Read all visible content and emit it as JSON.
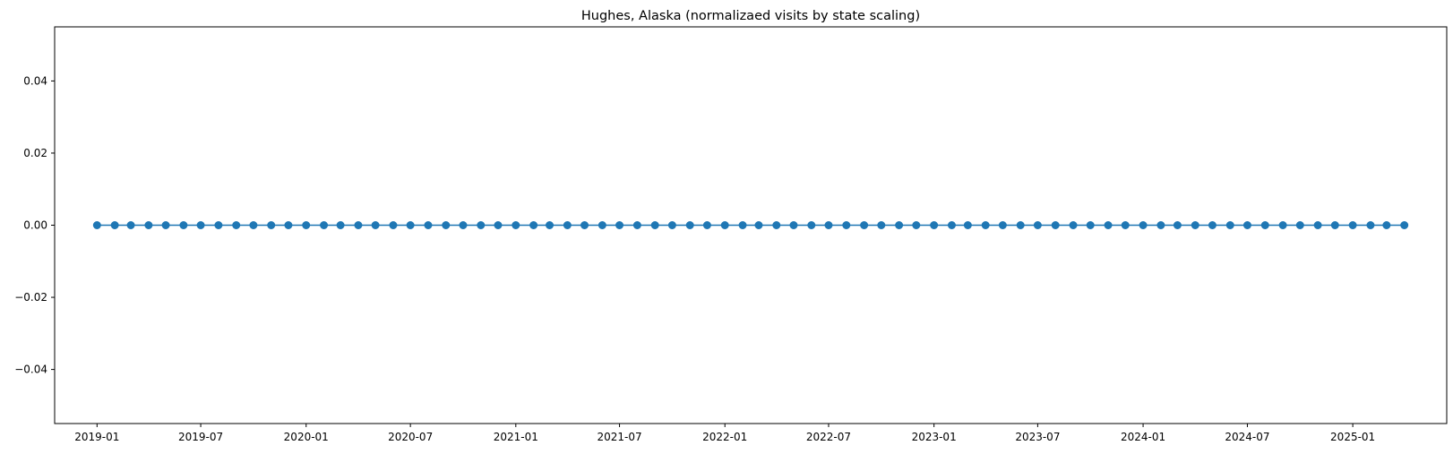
{
  "chart_data": {
    "type": "line",
    "title": "Hughes, Alaska (normalizaed visits by state scaling)",
    "xlabel": "",
    "ylabel": "",
    "x_start": "2019-01",
    "x_end": "2025-04",
    "x_frequency": "monthly",
    "x_ticks": [
      "2019-01",
      "2019-07",
      "2020-01",
      "2020-07",
      "2021-01",
      "2021-07",
      "2022-01",
      "2022-07",
      "2023-01",
      "2023-07",
      "2024-01",
      "2024-07",
      "2025-01"
    ],
    "y_ticks": [
      "0.04",
      "0.02",
      "0.00",
      "−0.02",
      "−0.04"
    ],
    "ylim": [
      -0.055,
      0.055
    ],
    "xlim": [
      "2018-10-19",
      "2025-06-14"
    ],
    "series": [
      {
        "color": "#1f77b4",
        "marker": "circle",
        "values": [
          0,
          0,
          0,
          0,
          0,
          0,
          0,
          0,
          0,
          0,
          0,
          0,
          0,
          0,
          0,
          0,
          0,
          0,
          0,
          0,
          0,
          0,
          0,
          0,
          0,
          0,
          0,
          0,
          0,
          0,
          0,
          0,
          0,
          0,
          0,
          0,
          0,
          0,
          0,
          0,
          0,
          0,
          0,
          0,
          0,
          0,
          0,
          0,
          0,
          0,
          0,
          0,
          0,
          0,
          0,
          0,
          0,
          0,
          0,
          0,
          0,
          0,
          0,
          0,
          0,
          0,
          0,
          0,
          0,
          0,
          0,
          0,
          0,
          0,
          0,
          0
        ]
      }
    ],
    "grid": false,
    "legend": "none"
  }
}
